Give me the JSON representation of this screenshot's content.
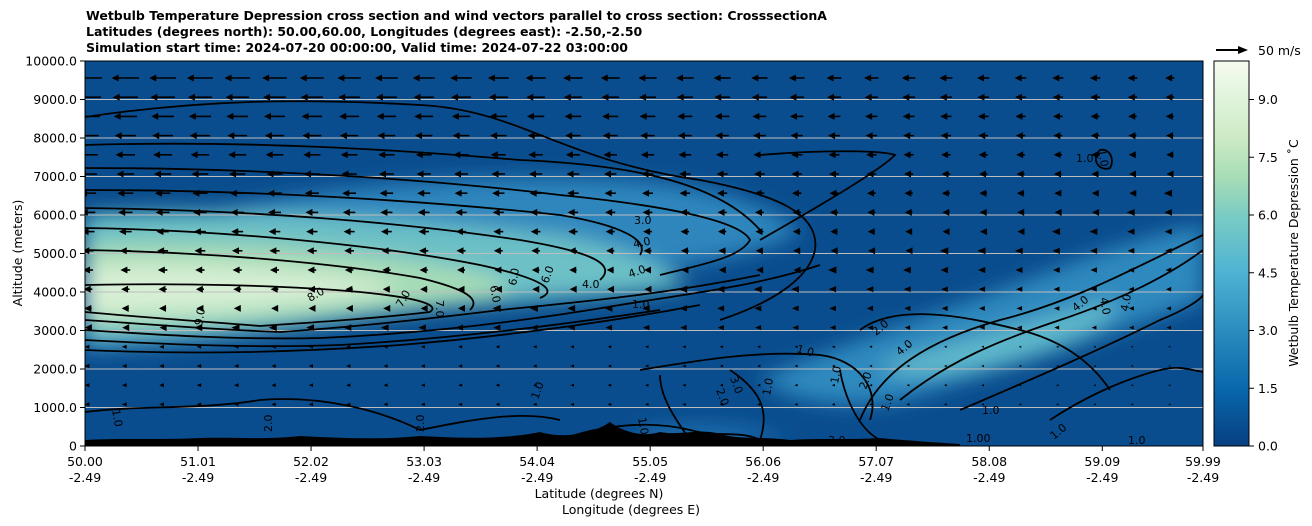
{
  "titles": {
    "line1": "Wetbulb Temperature Depression cross section and wind vectors parallel to cross section: CrosssectionA",
    "line2": "Latitudes (degrees north): 50.00,60.00, Longitudes (degrees east): -2.50,-2.50",
    "line3": "Simulation start time: 2024-07-20 00:00:00, Valid time: 2024-07-22 03:00:00"
  },
  "chart_data": {
    "type": "heatmap",
    "title": "Wetbulb Temperature Depression cross section and wind vectors parallel to cross section: CrosssectionA",
    "ylabel": "Altitude (meters)",
    "xlabel_line1": "Latitude (degrees N)",
    "xlabel_line2": "Longitude (degrees E)",
    "ylim": [
      0,
      10000
    ],
    "xlim": [
      50.0,
      59.99
    ],
    "y_ticks": [
      "0",
      "1000.0",
      "2000.0",
      "3000.0",
      "4000.0",
      "5000.0",
      "6000.0",
      "7000.0",
      "8000.0",
      "9000.0",
      "10000.0"
    ],
    "x_ticks": [
      {
        "lat": "50.00",
        "lon": "-2.49"
      },
      {
        "lat": "51.01",
        "lon": "-2.49"
      },
      {
        "lat": "52.02",
        "lon": "-2.49"
      },
      {
        "lat": "53.03",
        "lon": "-2.49"
      },
      {
        "lat": "54.04",
        "lon": "-2.49"
      },
      {
        "lat": "55.05",
        "lon": "-2.49"
      },
      {
        "lat": "56.06",
        "lon": "-2.49"
      },
      {
        "lat": "57.07",
        "lon": "-2.49"
      },
      {
        "lat": "58.08",
        "lon": "-2.49"
      },
      {
        "lat": "59.09",
        "lon": "-2.49"
      },
      {
        "lat": "59.99",
        "lon": "-2.49"
      }
    ],
    "colorbar": {
      "label": "Wetbulb Temperature Depression ˚C",
      "range": [
        0,
        10
      ],
      "ticks": [
        "0.0",
        "1.5",
        "3.0",
        "4.5",
        "6.0",
        "7.5",
        "9.0"
      ],
      "colormap": "GnBu_r"
    },
    "wind_key": {
      "label": "50 m/s",
      "value": 50
    },
    "contour_levels_labeled": [
      "1.0",
      "2.0",
      "3.0",
      "4.0",
      "5.0",
      "6.0",
      "7.0",
      "8.0",
      "9.0"
    ],
    "grid": "horizontal",
    "features": [
      {
        "name": "dry layer",
        "lat_range": [
          50.0,
          54.5
        ],
        "alt_range": [
          2700,
          5300
        ],
        "max_depression": 10
      },
      {
        "name": "mid-level dry tongue",
        "lat_range": [
          54.0,
          56.5
        ],
        "alt_range": [
          3500,
          6500
        ],
        "max_depression": 4
      },
      {
        "name": "lower dry band",
        "lat_range": [
          57.0,
          59.99
        ],
        "alt_range": [
          2000,
          5200
        ],
        "max_depression": 4
      },
      {
        "name": "terrain",
        "lat_range": [
          50.0,
          57.6
        ],
        "alt_range": [
          0,
          600
        ]
      }
    ]
  }
}
